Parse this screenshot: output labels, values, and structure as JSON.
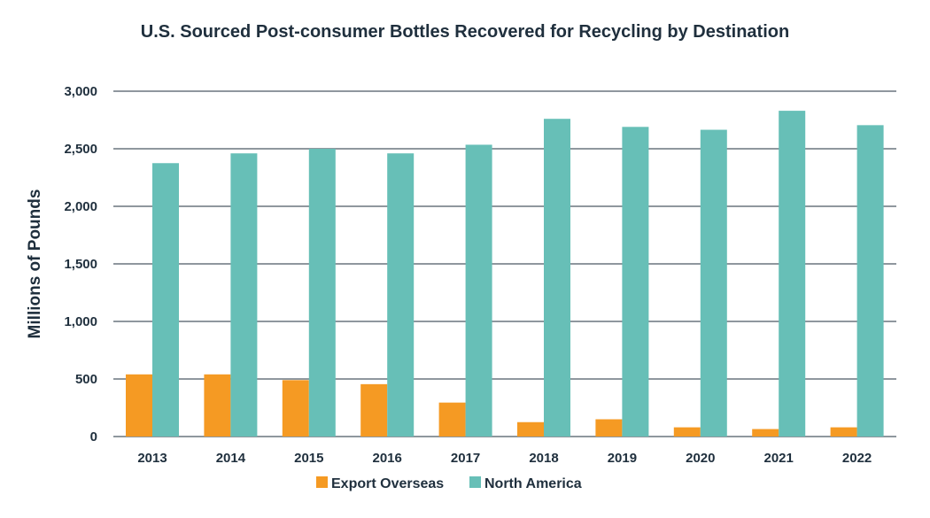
{
  "chart_data": {
    "type": "bar",
    "title": "U.S. Sourced Post-consumer Bottles Recovered for Recycling by Destination",
    "xlabel": "",
    "ylabel": "Millions of Pounds",
    "ylim": [
      0,
      3000
    ],
    "yticks": [
      0,
      500,
      1000,
      1500,
      2000,
      2500,
      3000
    ],
    "ytick_labels": [
      "0",
      "500",
      "1,000",
      "1,500",
      "2,000",
      "2,500",
      "3,000"
    ],
    "grid": true,
    "legend_position": "bottom",
    "categories": [
      "2013",
      "2014",
      "2015",
      "2016",
      "2017",
      "2018",
      "2019",
      "2020",
      "2021",
      "2022"
    ],
    "series": [
      {
        "name": "Export Overseas",
        "color": "#f59a23",
        "values": [
          540,
          540,
          490,
          455,
          295,
          125,
          150,
          80,
          65,
          80
        ]
      },
      {
        "name": "North America",
        "color": "#67bfb7",
        "values": [
          2375,
          2460,
          2500,
          2460,
          2535,
          2760,
          2690,
          2665,
          2830,
          2705
        ]
      }
    ]
  }
}
